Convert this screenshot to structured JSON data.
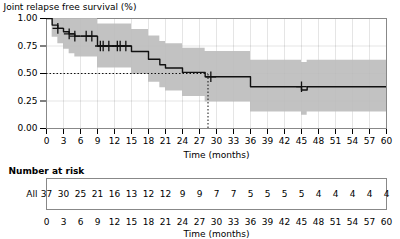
{
  "chart_data": {
    "type": "step",
    "xlabel": "Time (months)",
    "ylabel": "Joint relapse free survival (%)",
    "xlim": [
      0,
      60
    ],
    "ylim": [
      0,
      1.0
    ],
    "xticks": [
      0,
      3,
      6,
      9,
      12,
      15,
      18,
      21,
      24,
      27,
      30,
      33,
      36,
      39,
      42,
      45,
      48,
      51,
      54,
      57,
      60
    ],
    "yticks": [
      {
        "value": 0,
        "label": "0.00"
      },
      {
        "value": 0.25,
        "label": "0.25"
      },
      {
        "value": 0.5,
        "label": "0.50"
      },
      {
        "value": 0.75,
        "label": "0.75"
      },
      {
        "value": 1.0,
        "label": "1.00"
      }
    ],
    "grid": true,
    "color": "#111111",
    "x": [
      0,
      0.5,
      1,
      2,
      3,
      4,
      5,
      6,
      7,
      8,
      9,
      10,
      11,
      12,
      13,
      14,
      15,
      16,
      18,
      20,
      21,
      22,
      23,
      24,
      25,
      26,
      27,
      28,
      29,
      30,
      33,
      36,
      37,
      45,
      46,
      60
    ],
    "values": [
      1.0,
      1.0,
      0.94,
      0.91,
      0.88,
      0.86,
      0.84,
      0.84,
      0.84,
      0.84,
      0.75,
      0.75,
      0.75,
      0.75,
      0.75,
      0.75,
      0.7,
      0.7,
      0.63,
      0.58,
      0.55,
      0.55,
      0.55,
      0.51,
      0.51,
      0.51,
      0.51,
      0.47,
      0.47,
      0.47,
      0.47,
      0.38,
      0.38,
      0.35,
      0.38,
      0.38
    ],
    "ci": {
      "upper": [
        1.0,
        1.0,
        1.0,
        1.0,
        1.0,
        1.0,
        1.0,
        1.0,
        1.0,
        1.0,
        0.95,
        0.95,
        0.95,
        0.95,
        0.95,
        0.95,
        0.9,
        0.9,
        0.84,
        0.79,
        0.77,
        0.77,
        0.77,
        0.73,
        0.73,
        0.73,
        0.73,
        0.7,
        0.7,
        0.7,
        0.7,
        0.62,
        0.62,
        0.6,
        0.62,
        0.68
      ],
      "lower": [
        1.0,
        1.0,
        0.83,
        0.77,
        0.72,
        0.68,
        0.65,
        0.65,
        0.65,
        0.65,
        0.55,
        0.55,
        0.55,
        0.55,
        0.55,
        0.55,
        0.49,
        0.49,
        0.42,
        0.37,
        0.34,
        0.34,
        0.34,
        0.29,
        0.29,
        0.29,
        0.29,
        0.24,
        0.24,
        0.24,
        0.24,
        0.15,
        0.15,
        0.12,
        0.15,
        0.2
      ],
      "color": "#bbbbbb"
    },
    "censored": {
      "x": [
        2,
        4,
        5,
        7,
        8,
        9.5,
        10,
        11,
        12.5,
        13,
        14,
        29,
        45
      ],
      "values": [
        0.91,
        0.86,
        0.84,
        0.84,
        0.84,
        0.75,
        0.75,
        0.75,
        0.75,
        0.75,
        0.75,
        0.47,
        0.38
      ],
      "marker": "+"
    },
    "median": {
      "x": 28.5,
      "y": 0.5,
      "line_style": "dotted"
    },
    "risk_table": {
      "title": "Number at risk",
      "label": "All",
      "x": [
        0,
        3,
        6,
        9,
        12,
        15,
        18,
        21,
        24,
        27,
        30,
        33,
        36,
        39,
        42,
        45,
        48,
        51,
        54,
        57,
        60
      ],
      "values": [
        37,
        30,
        25,
        21,
        16,
        13,
        12,
        12,
        9,
        9,
        7,
        7,
        5,
        5,
        5,
        5,
        4,
        4,
        4,
        4,
        4
      ],
      "xlabel": "Time (months)"
    }
  }
}
